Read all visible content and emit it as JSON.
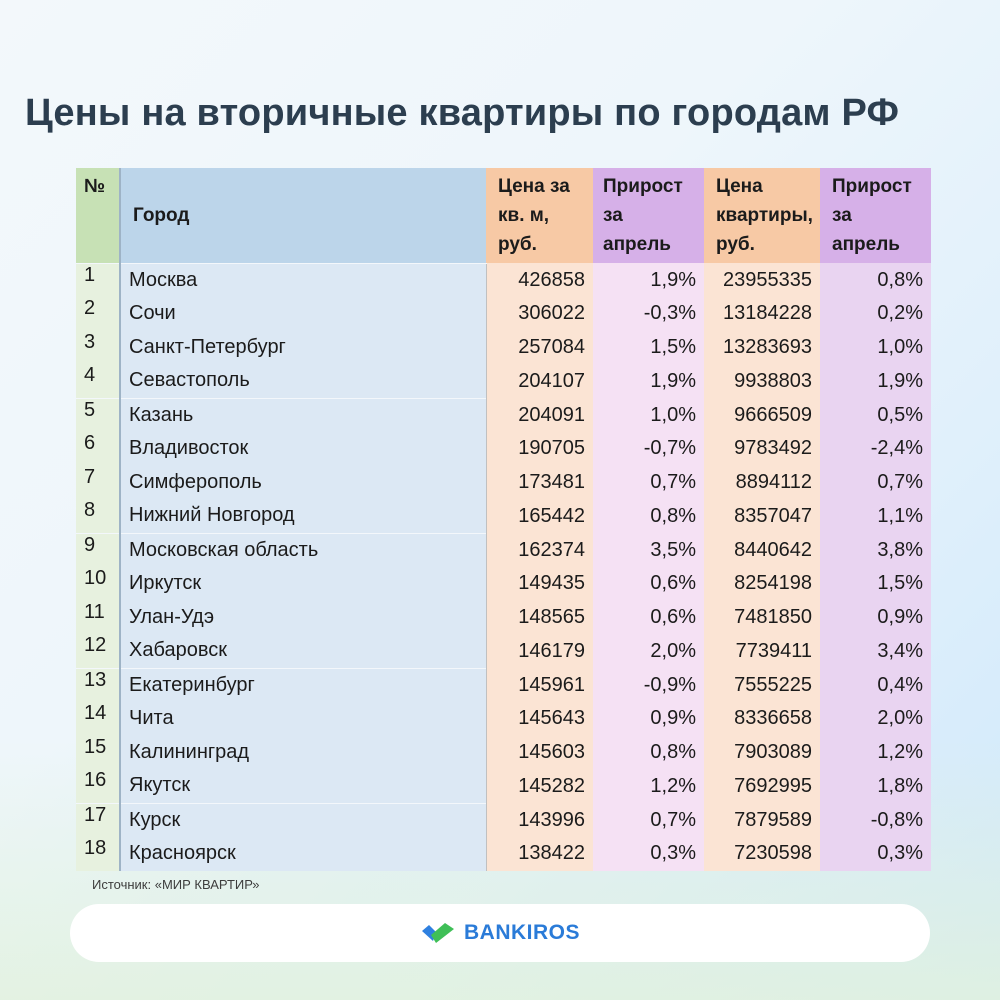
{
  "title": "Цены на вторичные квартиры по городам РФ",
  "table": {
    "headers": {
      "num": "№",
      "city": "Город",
      "price_sqm": [
        "Цена за",
        "кв. м,",
        "руб."
      ],
      "growth_sqm": [
        "Прирост",
        "за",
        "апрель"
      ],
      "price_flat": [
        "Цена",
        "квартиры,",
        "руб."
      ],
      "growth_flat": [
        "Прирост",
        "за",
        "апрель"
      ]
    },
    "rows": [
      {
        "num": "1",
        "city": "Москва",
        "price_sqm": "426858",
        "growth_sqm": "1,9%",
        "price_flat": "23955335",
        "growth_flat": "0,8%"
      },
      {
        "num": "2",
        "city": "Сочи",
        "price_sqm": "306022",
        "growth_sqm": "-0,3%",
        "price_flat": "13184228",
        "growth_flat": "0,2%"
      },
      {
        "num": "3",
        "city": "Санкт-Петербург",
        "price_sqm": "257084",
        "growth_sqm": "1,5%",
        "price_flat": "13283693",
        "growth_flat": "1,0%"
      },
      {
        "num": "4",
        "city": "Севастополь",
        "price_sqm": "204107",
        "growth_sqm": "1,9%",
        "price_flat": "9938803",
        "growth_flat": "1,9%"
      },
      {
        "num": "5",
        "city": "Казань",
        "price_sqm": "204091",
        "growth_sqm": "1,0%",
        "price_flat": "9666509",
        "growth_flat": "0,5%"
      },
      {
        "num": "6",
        "city": "Владивосток",
        "price_sqm": "190705",
        "growth_sqm": "-0,7%",
        "price_flat": "9783492",
        "growth_flat": "-2,4%"
      },
      {
        "num": "7",
        "city": "Симферополь",
        "price_sqm": "173481",
        "growth_sqm": "0,7%",
        "price_flat": "8894112",
        "growth_flat": "0,7%"
      },
      {
        "num": "8",
        "city": "Нижний Новгород",
        "price_sqm": "165442",
        "growth_sqm": "0,8%",
        "price_flat": "8357047",
        "growth_flat": "1,1%"
      },
      {
        "num": "9",
        "city": "Московская область",
        "price_sqm": "162374",
        "growth_sqm": "3,5%",
        "price_flat": "8440642",
        "growth_flat": "3,8%"
      },
      {
        "num": "10",
        "city": "Иркутск",
        "price_sqm": "149435",
        "growth_sqm": "0,6%",
        "price_flat": "8254198",
        "growth_flat": "1,5%"
      },
      {
        "num": "11",
        "city": "Улан-Удэ",
        "price_sqm": "148565",
        "growth_sqm": "0,6%",
        "price_flat": "7481850",
        "growth_flat": "0,9%"
      },
      {
        "num": "12",
        "city": "Хабаровск",
        "price_sqm": "146179",
        "growth_sqm": "2,0%",
        "price_flat": "7739411",
        "growth_flat": "3,4%"
      },
      {
        "num": "13",
        "city": "Екатеринбург",
        "price_sqm": "145961",
        "growth_sqm": "-0,9%",
        "price_flat": "7555225",
        "growth_flat": "0,4%"
      },
      {
        "num": "14",
        "city": "Чита",
        "price_sqm": "145643",
        "growth_sqm": "0,9%",
        "price_flat": "8336658",
        "growth_flat": "2,0%"
      },
      {
        "num": "15",
        "city": "Калининград",
        "price_sqm": "145603",
        "growth_sqm": "0,8%",
        "price_flat": "7903089",
        "growth_flat": "1,2%"
      },
      {
        "num": "16",
        "city": "Якутск",
        "price_sqm": "145282",
        "growth_sqm": "1,2%",
        "price_flat": "7692995",
        "growth_flat": "1,8%"
      },
      {
        "num": "17",
        "city": "Курск",
        "price_sqm": "143996",
        "growth_sqm": "0,7%",
        "price_flat": "7879589",
        "growth_flat": "-0,8%"
      },
      {
        "num": "18",
        "city": "Красноярск",
        "price_sqm": "138422",
        "growth_sqm": "0,3%",
        "price_flat": "7230598",
        "growth_flat": "0,3%"
      }
    ]
  },
  "source": "Источник: «МИР КВАРТИР»",
  "footer": {
    "brand": "BANKIROS",
    "logo_icon": "bankiros-check-logo-icon",
    "brand_color": "#2a7bd8",
    "logo_colors": [
      "#2f80e0",
      "#3fbf57"
    ]
  }
}
